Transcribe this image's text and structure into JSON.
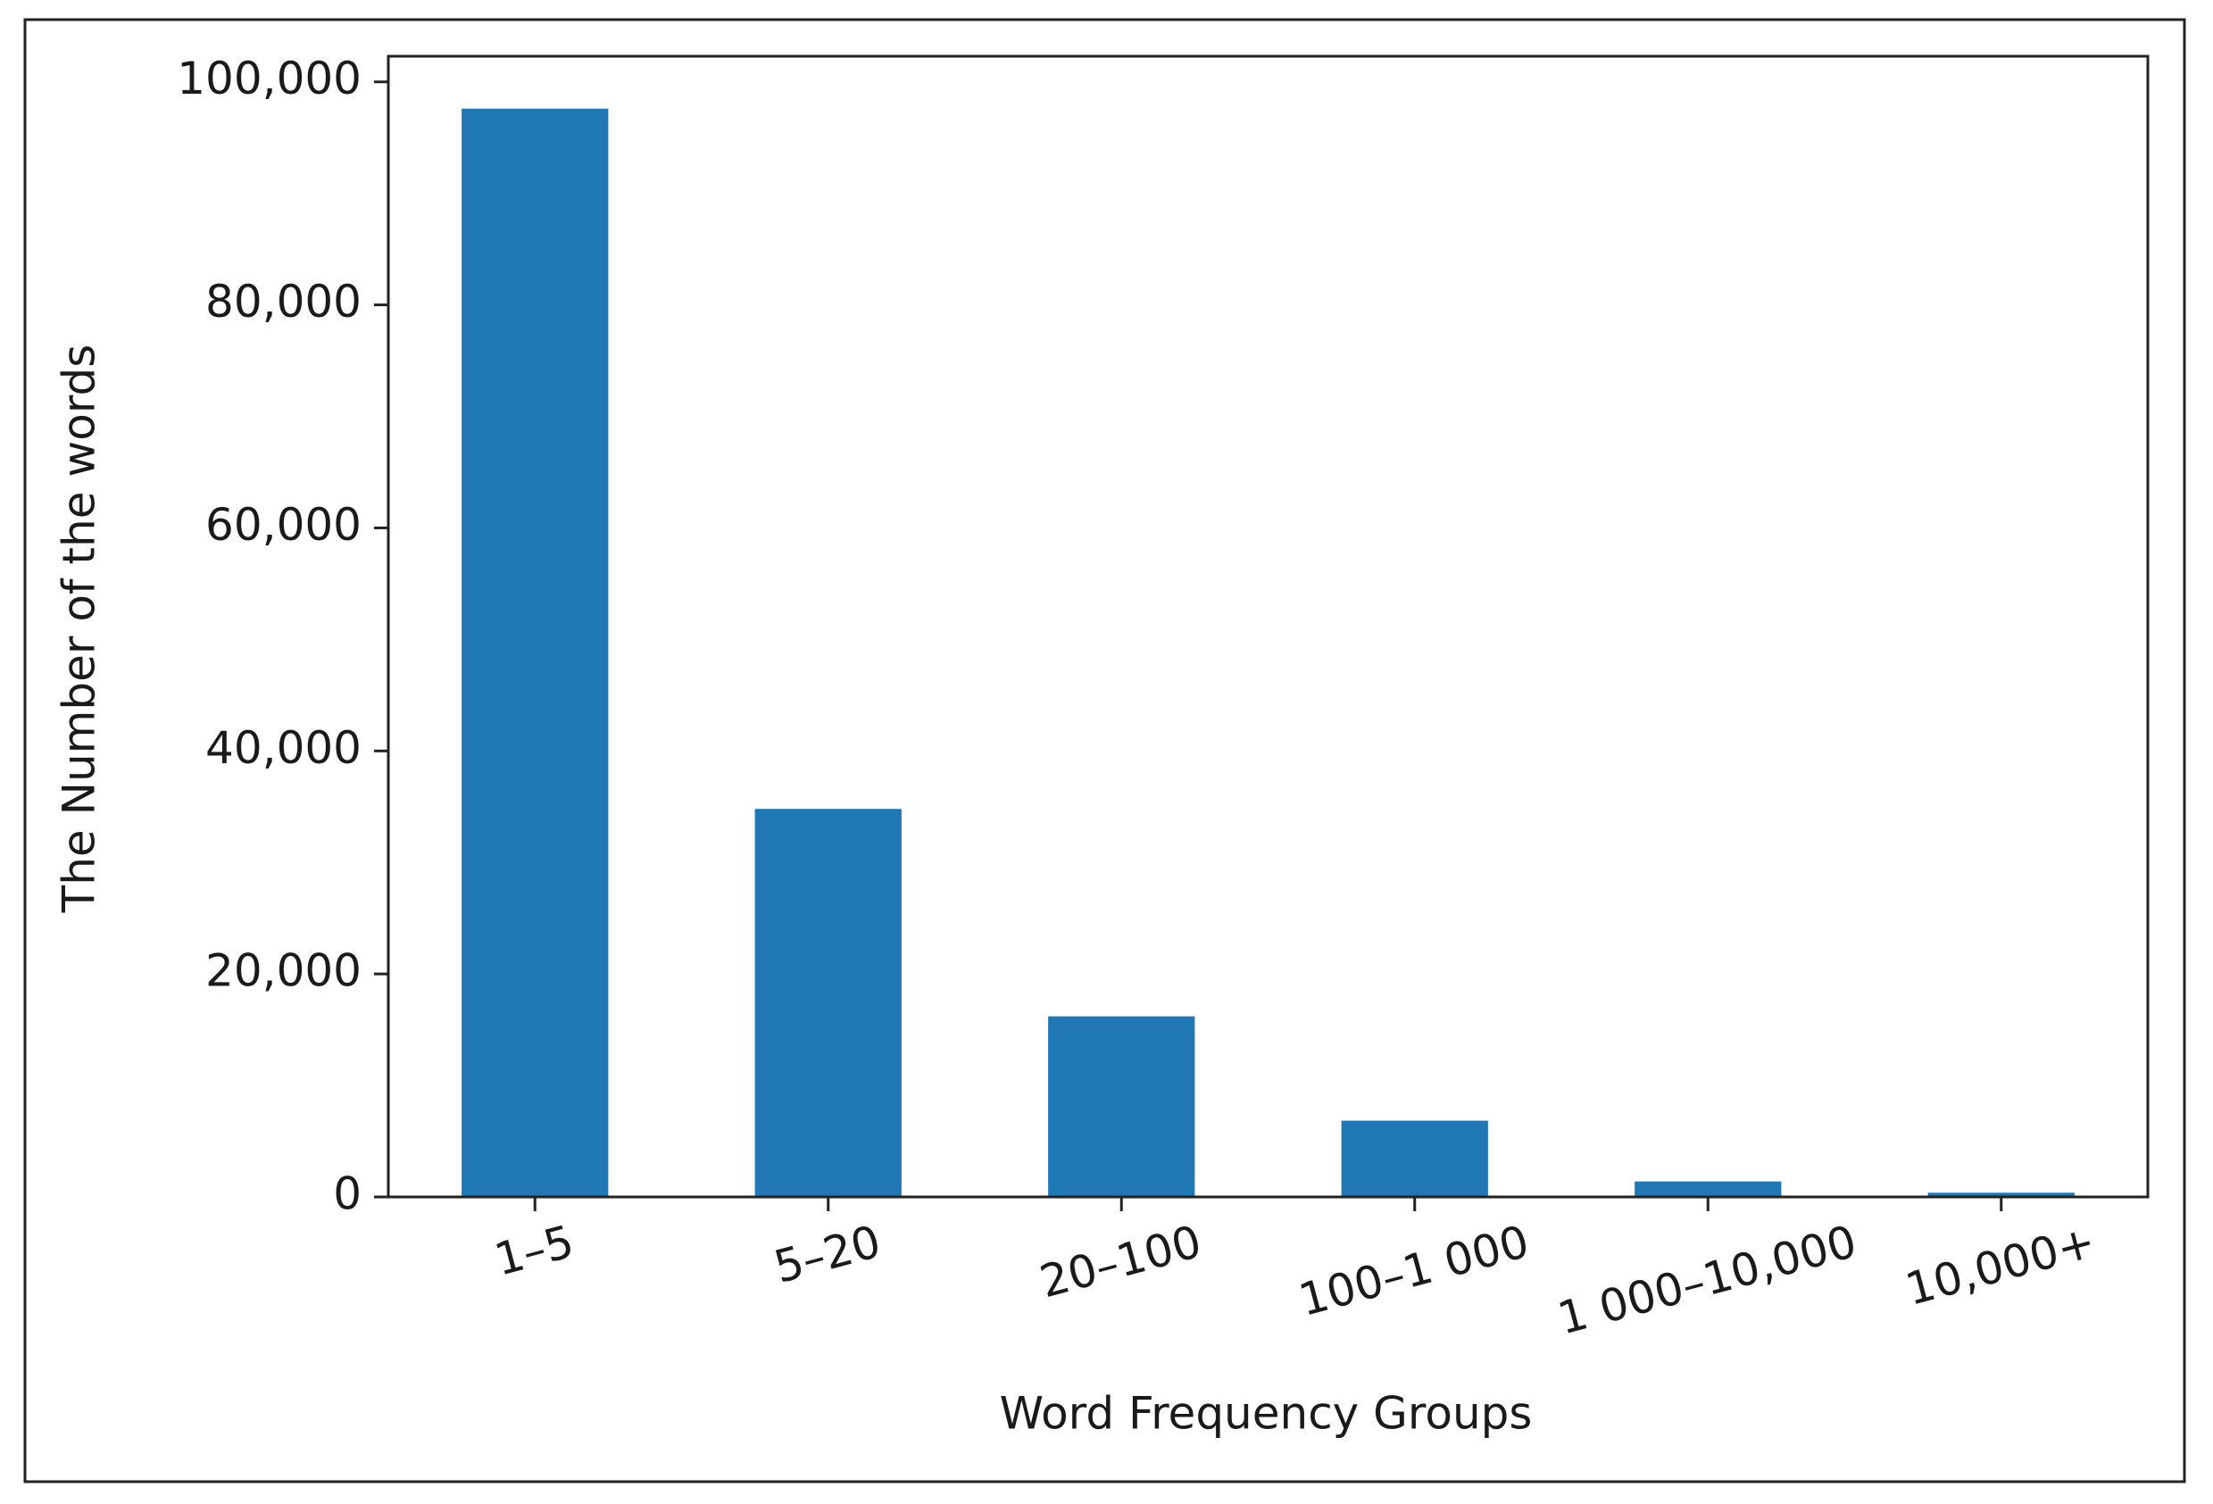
{
  "chart_data": {
    "type": "bar",
    "x_label": "Word Frequency Groups",
    "y_label": "The Number of the words",
    "categories": [
      "1–5",
      "5–20",
      "20–100",
      "100–1 000",
      "1 000–10,000",
      "10,000+"
    ],
    "values": [
      97600,
      34800,
      16200,
      6840,
      1390,
      380
    ],
    "color": "#1f77b4",
    "ylim": [
      0,
      102300
    ],
    "yticks": [
      0,
      {
        "value": 20000,
        "label": "20,000"
      },
      {
        "value": 40000,
        "label": "40,000"
      },
      {
        "value": 60000,
        "label": "60,000"
      },
      {
        "value": 80000,
        "label": "80,000"
      },
      {
        "value": 100000,
        "label": "100,000"
      }
    ],
    "grid": false
  }
}
